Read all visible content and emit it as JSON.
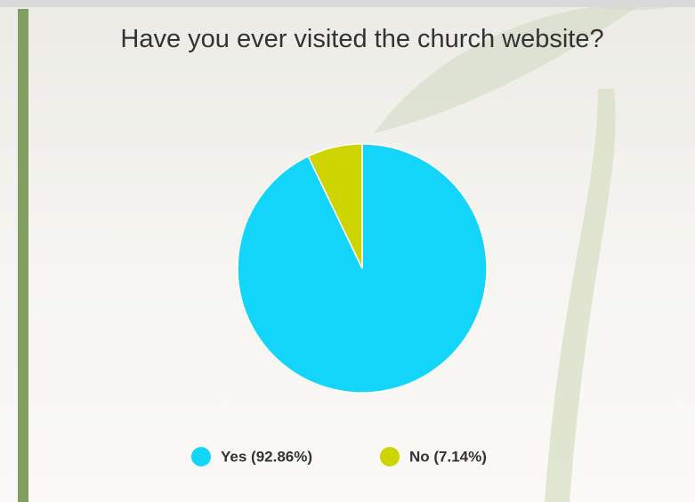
{
  "chart_data": {
    "type": "pie",
    "title": "Have you ever visited the church website?",
    "categories": [
      "Yes (92.86%)",
      "No (7.14%)"
    ],
    "values": [
      92.86,
      7.14
    ],
    "colors": [
      "#13d4f9",
      "#cdd400"
    ]
  }
}
